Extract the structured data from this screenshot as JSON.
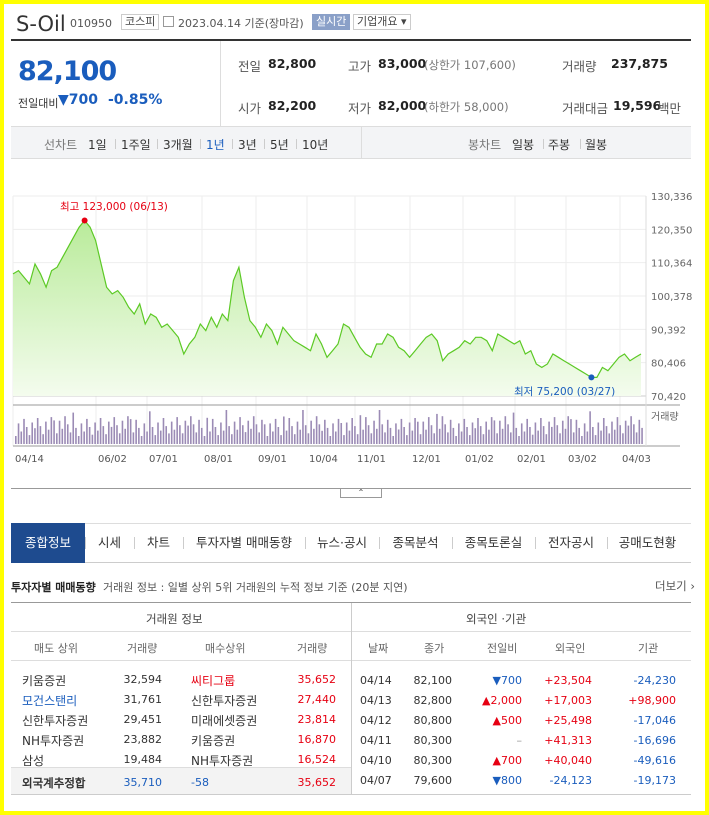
{
  "header": {
    "company": "S-Oil",
    "code": "010950",
    "market": "코스피",
    "date_text": "2023.04.14 기준(장마감)",
    "realtime": "실시간",
    "overview": "기업개요"
  },
  "price": {
    "current": "82,100",
    "change_label": "전일대비",
    "change": "700",
    "change_pct": "-0.85%"
  },
  "stats": {
    "prev_label": "전일",
    "prev": "82,800",
    "high_label": "고가",
    "high": "83,000",
    "upper_limit": "(상한가 107,600)",
    "volume_label": "거래량",
    "volume": "237,875",
    "open_label": "시가",
    "open": "82,200",
    "low_label": "저가",
    "low": "82,000",
    "lower_limit": "(하한가 58,000)",
    "amount_label": "거래대금",
    "amount": "19,596",
    "amount_unit": "백만"
  },
  "period_bar": {
    "line_label": "선차트",
    "periods": [
      "1일",
      "1주일",
      "3개월",
      "1년",
      "3년",
      "5년",
      "10년"
    ],
    "selected": "1년",
    "candle_label": "봉차트",
    "candles": [
      "일봉",
      "주봉",
      "월봉"
    ]
  },
  "chart_data": {
    "type": "area",
    "title": "",
    "y_ticks": [
      "130,336",
      "120,350",
      "110,364",
      "100,378",
      "90,392",
      "80,406",
      "70,420"
    ],
    "ylim": [
      70420,
      130336
    ],
    "x_ticks": [
      "04/14",
      "06/02",
      "07/01",
      "08/01",
      "09/01",
      "10/04",
      "11/01",
      "12/01",
      "01/02",
      "02/01",
      "03/02",
      "04/03"
    ],
    "max_label": "최고 123,000 (06/13)",
    "min_label": "최저 75,200 (03/27)",
    "volume_label": "거래량",
    "y": [
      107000,
      108000,
      106000,
      104000,
      110000,
      107000,
      103000,
      108000,
      109000,
      112000,
      115000,
      118000,
      121000,
      123000,
      121000,
      117000,
      110000,
      103000,
      101000,
      102000,
      100000,
      97000,
      95000,
      98000,
      92000,
      95000,
      94000,
      91000,
      92000,
      90000,
      88000,
      83000,
      86000,
      88000,
      92000,
      90000,
      94000,
      91000,
      95000,
      93000,
      105000,
      109000,
      100000,
      93000,
      91000,
      88000,
      92000,
      90000,
      86000,
      91000,
      89000,
      87000,
      86000,
      85000,
      84000,
      89000,
      86000,
      82000,
      84000,
      86000,
      92000,
      91000,
      88000,
      85000,
      83000,
      82000,
      86000,
      86000,
      89000,
      88000,
      85000,
      84000,
      82000,
      84000,
      86000,
      88000,
      89000,
      87000,
      81000,
      83000,
      84000,
      85000,
      87000,
      86000,
      88000,
      88000,
      87000,
      84000,
      89000,
      88000,
      87000,
      86000,
      87000,
      83000,
      84000,
      80000,
      79000,
      80000,
      83000,
      82000,
      81000,
      80000,
      79000,
      78000,
      77000,
      76000,
      76000,
      79000,
      78000,
      80000,
      82000,
      83000,
      81000,
      82000,
      83000
    ]
  },
  "tabs": [
    "종합정보",
    "시세",
    "차트",
    "투자자별 매매동향",
    "뉴스·공시",
    "종목분석",
    "종목토론실",
    "전자공시",
    "공매도현황"
  ],
  "investor": {
    "title": "투자자별 매매동향",
    "desc": "거래원 정보 : 일별 상위 5위 거래원의 누적 정보 기준 (20분 지연)",
    "more": "더보기",
    "left_title": "거래원 정보",
    "left_headers": [
      "매도 상위",
      "거래량",
      "매수상위",
      "거래량"
    ],
    "left_rows": [
      [
        "키움증권",
        "32,594",
        "씨티그룹",
        "35,652"
      ],
      [
        "모건스탠리",
        "31,761",
        "신한투자증권",
        "27,440"
      ],
      [
        "신한투자증권",
        "29,451",
        "미래에셋증권",
        "23,814"
      ],
      [
        "NH투자증권",
        "23,882",
        "키움증권",
        "16,870"
      ],
      [
        "삼성",
        "19,484",
        "NH투자증권",
        "16,524"
      ]
    ],
    "foreign_label": "외국계추정합",
    "foreign_sell": "35,710",
    "foreign_net": "-58",
    "foreign_buy": "35,652",
    "right_title": "외국인 ·기관",
    "right_headers": [
      "날짜",
      "종가",
      "전일비",
      "외국인",
      "기관"
    ],
    "right_rows": [
      [
        "04/14",
        "82,100",
        "▼700",
        "+23,504",
        "-24,230"
      ],
      [
        "04/13",
        "82,800",
        "▲2,000",
        "+17,003",
        "+98,900"
      ],
      [
        "04/12",
        "80,800",
        "▲500",
        "+25,498",
        "-17,046"
      ],
      [
        "04/11",
        "80,300",
        "–",
        "+41,313",
        "-16,696"
      ],
      [
        "04/10",
        "80,300",
        "▲700",
        "+40,040",
        "-49,616"
      ],
      [
        "04/07",
        "79,600",
        "▼800",
        "-24,123",
        "-19,173"
      ]
    ]
  },
  "colors": {
    "up": "#e60012",
    "down": "#1a5dbd",
    "tab_active": "#1e4b8f",
    "line": "#5cc925"
  }
}
